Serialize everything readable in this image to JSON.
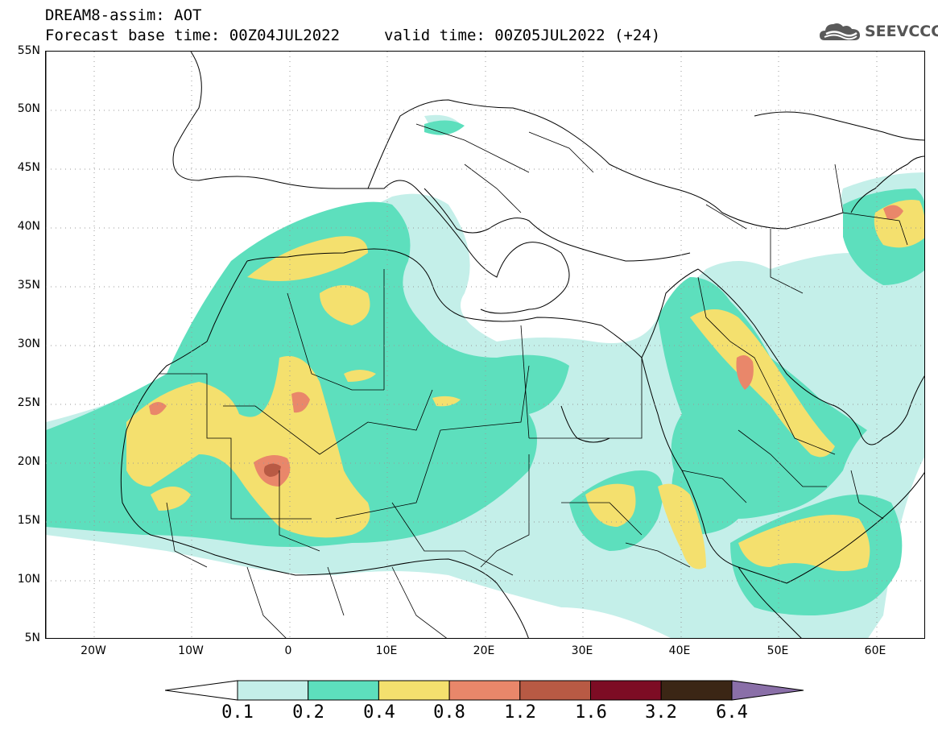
{
  "header": {
    "title": "DREAM8-assim: AOT",
    "base_time": "Forecast base time: 00Z04JUL2022",
    "valid_time": "valid time: 00Z05JUL2022 (+24)"
  },
  "logo": {
    "text": "SEEVCCC",
    "icon": "cloud-icon"
  },
  "map": {
    "lat_labels": [
      "55N",
      "50N",
      "45N",
      "40N",
      "35N",
      "30N",
      "25N",
      "20N",
      "15N",
      "10N",
      "5N"
    ],
    "lon_labels": [
      "20W",
      "10W",
      "0",
      "10E",
      "20E",
      "30E",
      "40E",
      "50E",
      "60E"
    ],
    "lat_range": [
      5,
      55
    ],
    "lon_range": [
      -25,
      65
    ],
    "gridlines": true
  },
  "legend": {
    "values": [
      "0.1",
      "0.2",
      "0.4",
      "0.8",
      "1.2",
      "1.6",
      "3.2",
      "6.4"
    ],
    "colors": [
      "#c4efe9",
      "#5ddfbd",
      "#f4e06e",
      "#e9876a",
      "#b85a44",
      "#7d0c24",
      "#3b2615",
      "#8a6fa8"
    ]
  }
}
